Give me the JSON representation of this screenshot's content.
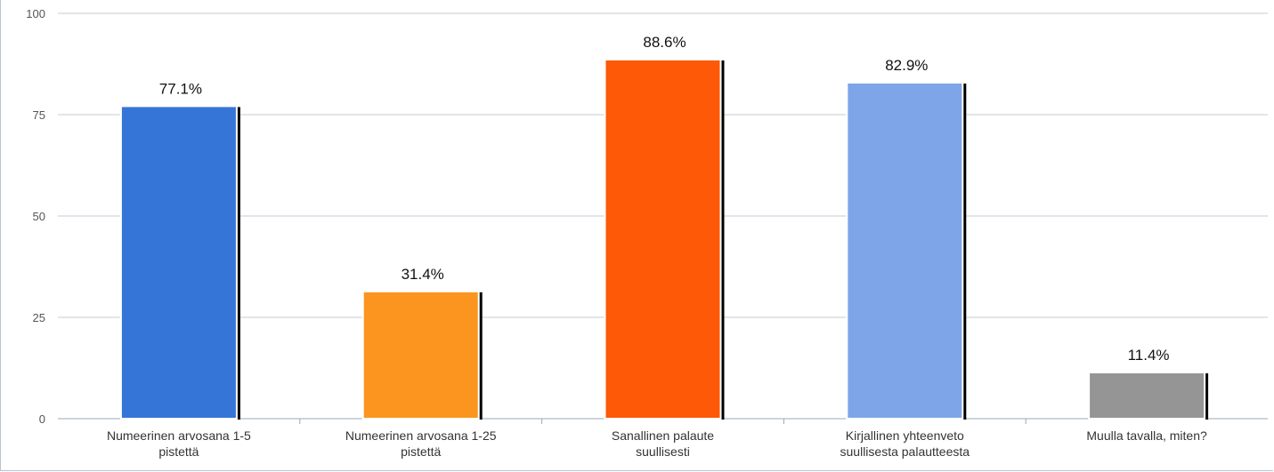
{
  "chart_data": {
    "type": "bar",
    "title": "",
    "xlabel": "",
    "ylabel": "",
    "ylim": [
      0,
      100
    ],
    "yticks": [
      0,
      25,
      50,
      75,
      100
    ],
    "grid": true,
    "categories": [
      [
        "Numeerinen arvosana 1-5",
        "pistettä"
      ],
      [
        "Numeerinen arvosana 1-25",
        "pistettä"
      ],
      [
        "Sanallinen palaute",
        "suullisesti"
      ],
      [
        "Kirjallinen yhteenveto",
        "suullisesta palautteesta"
      ],
      [
        "Muulla tavalla, miten?"
      ]
    ],
    "values": [
      77.1,
      31.4,
      88.6,
      82.9,
      11.4
    ],
    "data_labels": [
      "77.1%",
      "31.4%",
      "88.6%",
      "82.9%",
      "11.4%"
    ],
    "colors": [
      "#3575d8",
      "#fb951f",
      "#fd5907",
      "#7ea5e8",
      "#959595"
    ],
    "gridline_color": "#c5ccd6",
    "axis_color": "#9aa8b8"
  }
}
